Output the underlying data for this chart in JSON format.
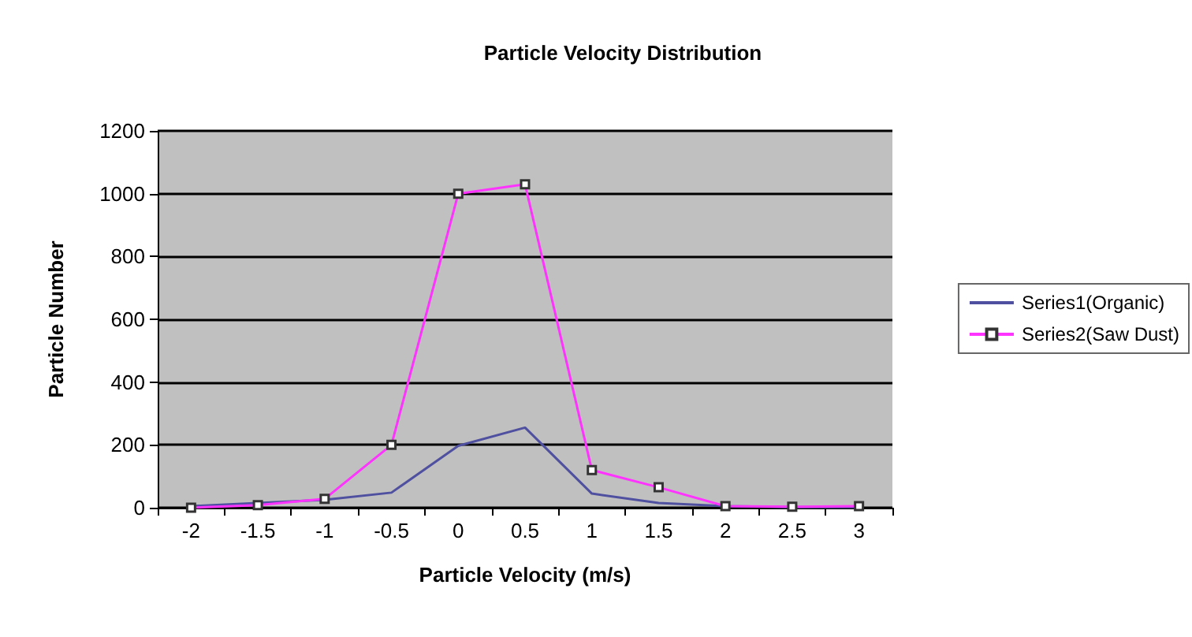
{
  "chart_data": {
    "type": "line",
    "title": "Particle Velocity Distribution",
    "xlabel": "Particle Velocity (m/s)",
    "ylabel": "Particle Number",
    "categories": [
      "-2",
      "-1.5",
      "-1",
      "-0.5",
      "0",
      "0.5",
      "1",
      "1.5",
      "2",
      "2.5",
      "3"
    ],
    "series": [
      {
        "name": "Series1(Organic)",
        "color": "#5050a0",
        "marker": "none",
        "values": [
          5,
          15,
          25,
          48,
          197,
          255,
          45,
          15,
          5,
          2,
          2
        ]
      },
      {
        "name": "Series2(Saw Dust)",
        "color": "#ff33ff",
        "marker": "square",
        "values": [
          0,
          8,
          28,
          200,
          1000,
          1030,
          120,
          65,
          5,
          3,
          5
        ]
      }
    ],
    "ylim": [
      0,
      1200
    ],
    "yticks": [
      0,
      200,
      400,
      600,
      800,
      1000,
      1200
    ],
    "grid": "y",
    "legend": "right"
  }
}
